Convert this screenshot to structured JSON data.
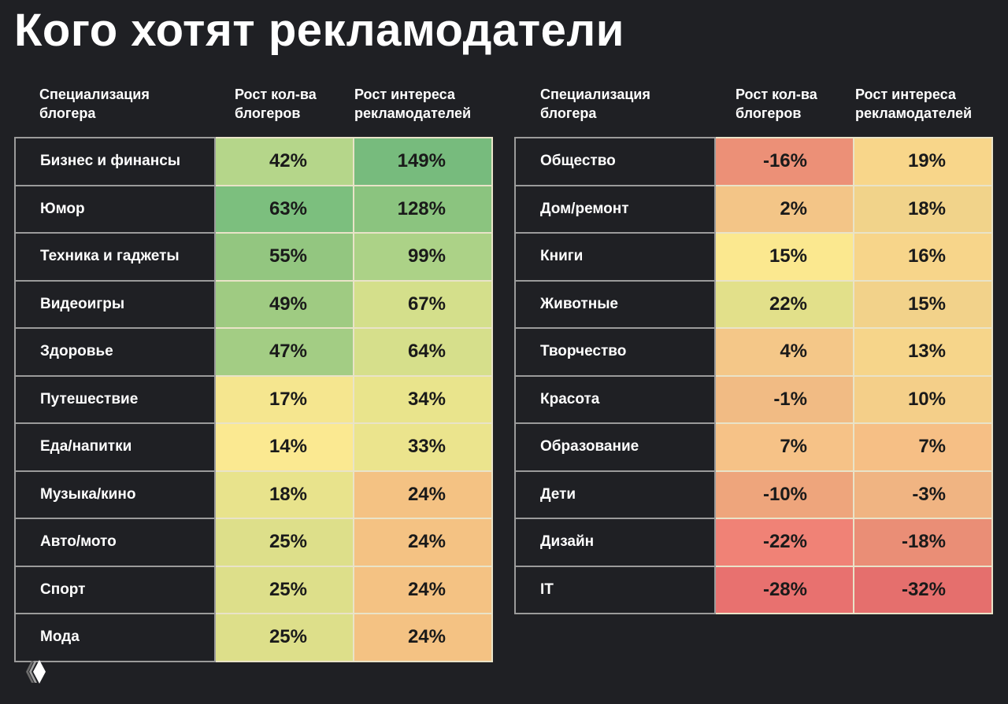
{
  "title": "Кого хотят рекламодатели",
  "headers": {
    "left": [
      "Специализация\nблогера",
      "Рост кол-ва\nблогеров",
      "Рост интереса\nрекламодателей"
    ],
    "right": [
      "Специализация\nблогера",
      "Рост кол-ва\nблогеров",
      "Рост интереса\nрекламодателей"
    ]
  },
  "chart_data": {
    "type": "heatmap",
    "title": "Кого хотят рекламодатели",
    "columns": [
      "Специализация блогера",
      "Рост кол-ва блогеров",
      "Рост интереса рекламодателей"
    ],
    "color_scale": {
      "low": "#e56f6d",
      "mid": "#fbe991",
      "high": "#77bb7d"
    },
    "tables": [
      {
        "rows": [
          {
            "label": "Бизнес и финансы",
            "bloggers": "42%",
            "advertisers": "149%",
            "colors": [
              "#b5d68a",
              "#77bb7d"
            ]
          },
          {
            "label": "Юмор",
            "bloggers": "63%",
            "advertisers": "128%",
            "colors": [
              "#7cbf7e",
              "#8bc47f"
            ]
          },
          {
            "label": "Техника и гаджеты",
            "bloggers": "55%",
            "advertisers": "99%",
            "colors": [
              "#93c680",
              "#acd287"
            ]
          },
          {
            "label": "Видеоигры",
            "bloggers": "49%",
            "advertisers": "67%",
            "colors": [
              "#9fcb82",
              "#d4df8b"
            ]
          },
          {
            "label": "Здоровье",
            "bloggers": "47%",
            "advertisers": "64%",
            "colors": [
              "#a3cd84",
              "#d6df8b"
            ]
          },
          {
            "label": "Путешествие",
            "bloggers": "17%",
            "advertisers": "34%",
            "colors": [
              "#f5e68f",
              "#e9e48c"
            ]
          },
          {
            "label": "Еда/напитки",
            "bloggers": "14%",
            "advertisers": "33%",
            "colors": [
              "#fbe991",
              "#ebe48d"
            ]
          },
          {
            "label": "Музыка/кино",
            "bloggers": "18%",
            "advertisers": "24%",
            "colors": [
              "#e8e38c",
              "#f4c283"
            ]
          },
          {
            "label": "Авто/мото",
            "bloggers": "25%",
            "advertisers": "24%",
            "colors": [
              "#dddf8a",
              "#f4c283"
            ]
          },
          {
            "label": "Спорт",
            "bloggers": "25%",
            "advertisers": "24%",
            "colors": [
              "#dddf8a",
              "#f4c283"
            ]
          },
          {
            "label": "Мода",
            "bloggers": "25%",
            "advertisers": "24%",
            "colors": [
              "#dddf8a",
              "#f4c283"
            ]
          }
        ]
      },
      {
        "rows": [
          {
            "label": "Общество",
            "bloggers": "-16%",
            "advertisers": "19%",
            "colors": [
              "#ec9077",
              "#f8d68a"
            ]
          },
          {
            "label": "Дом/ремонт",
            "bloggers": "2%",
            "advertisers": "18%",
            "colors": [
              "#f3c587",
              "#f1d38a"
            ]
          },
          {
            "label": "Книги",
            "bloggers": "15%",
            "advertisers": "16%",
            "colors": [
              "#fbe88f",
              "#f7d58a"
            ]
          },
          {
            "label": "Животные",
            "bloggers": "22%",
            "advertisers": "15%",
            "colors": [
              "#e2e08a",
              "#f2d28a"
            ]
          },
          {
            "label": "Творчество",
            "bloggers": "4%",
            "advertisers": "13%",
            "colors": [
              "#f4c788",
              "#f6d58a"
            ]
          },
          {
            "label": "Красота",
            "bloggers": "-1%",
            "advertisers": "10%",
            "colors": [
              "#f1bb84",
              "#f4cf89"
            ]
          },
          {
            "label": "Образование",
            "bloggers": "7%",
            "advertisers": "7%",
            "colors": [
              "#f6c287",
              "#f6bf85"
            ]
          },
          {
            "label": "Дети",
            "bloggers": "-10%",
            "advertisers": "-3%",
            "colors": [
              "#eea57c",
              "#f0b482"
            ]
          },
          {
            "label": "Дизайн",
            "bloggers": "-22%",
            "advertisers": "-18%",
            "colors": [
              "#f08276",
              "#ea8e76"
            ]
          },
          {
            "label": "IT",
            "bloggers": "-28%",
            "advertisers": "-32%",
            "colors": [
              "#e8716f",
              "#e56f6d"
            ]
          }
        ]
      }
    ]
  },
  "logo": {
    "icon": "chevron-diamond-logo"
  }
}
